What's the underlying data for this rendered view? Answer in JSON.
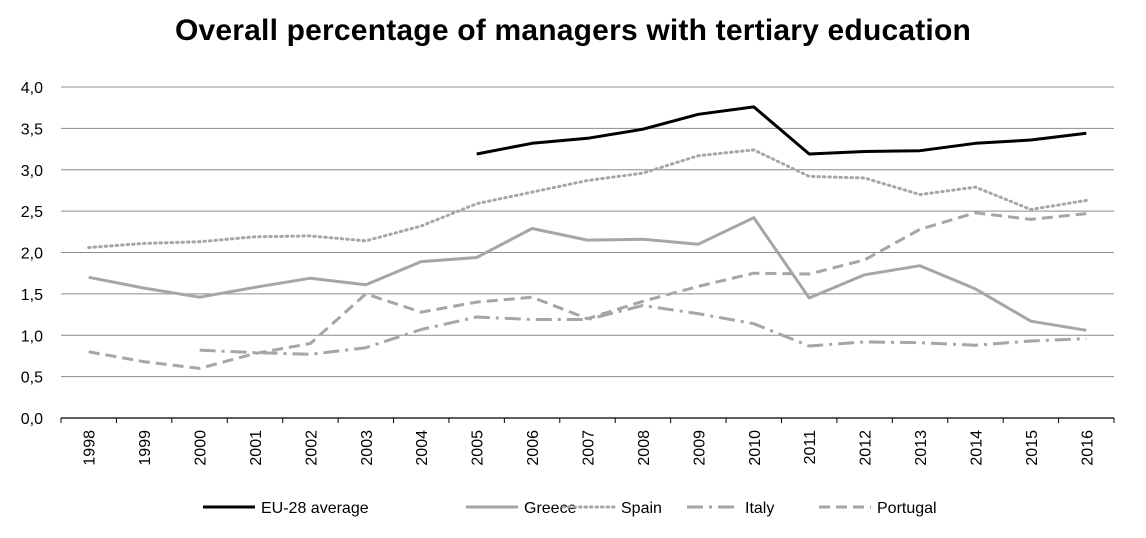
{
  "chart_data": {
    "type": "line",
    "title": "Overall percentage of managers with tertiary education",
    "xlabel": "",
    "ylabel": "",
    "x": [
      "1998",
      "1999",
      "2000",
      "2001",
      "2002",
      "2003",
      "2004",
      "2005",
      "2006",
      "2007",
      "2008",
      "2009",
      "2010",
      "2011",
      "2012",
      "2013",
      "2014",
      "2015",
      "2016"
    ],
    "yticks": [
      "0,0",
      "0,5",
      "1,0",
      "1,5",
      "2,0",
      "2,5",
      "3,0",
      "3,5",
      "4,0"
    ],
    "ylim": [
      0,
      4
    ],
    "grid": true,
    "legend_position": "bottom",
    "series": [
      {
        "name": "EU-28 average",
        "style": "solid",
        "color": "#000000",
        "values": [
          null,
          null,
          null,
          null,
          null,
          null,
          null,
          3.19,
          3.32,
          3.38,
          3.49,
          3.67,
          3.76,
          3.19,
          3.22,
          3.23,
          3.32,
          3.36,
          3.44
        ]
      },
      {
        "name": "Greece",
        "style": "solid",
        "color": "#a6a6a6",
        "values": [
          1.7,
          1.57,
          1.46,
          1.58,
          1.69,
          1.61,
          1.89,
          1.94,
          2.29,
          2.15,
          2.16,
          2.1,
          2.42,
          1.45,
          1.73,
          1.84,
          1.56,
          1.17,
          1.06
        ]
      },
      {
        "name": "Spain",
        "style": "dotted",
        "color": "#a6a6a6",
        "values": [
          2.06,
          2.11,
          2.13,
          2.19,
          2.2,
          2.14,
          2.32,
          2.59,
          2.73,
          2.87,
          2.96,
          3.17,
          3.24,
          2.92,
          2.9,
          2.7,
          2.79,
          2.52,
          2.63
        ]
      },
      {
        "name": "Italy",
        "style": "dashdot",
        "color": "#a6a6a6",
        "values": [
          null,
          null,
          0.82,
          0.79,
          0.77,
          0.85,
          1.07,
          1.22,
          1.19,
          1.19,
          1.36,
          1.26,
          1.14,
          0.87,
          0.92,
          0.91,
          0.88,
          0.93,
          0.96
        ]
      },
      {
        "name": "Portugal",
        "style": "dashed",
        "color": "#a6a6a6",
        "values": [
          0.8,
          0.68,
          0.6,
          0.78,
          0.9,
          1.5,
          1.28,
          1.4,
          1.46,
          1.2,
          1.41,
          1.59,
          1.75,
          1.74,
          1.91,
          2.28,
          2.48,
          2.4,
          2.47
        ]
      }
    ]
  }
}
